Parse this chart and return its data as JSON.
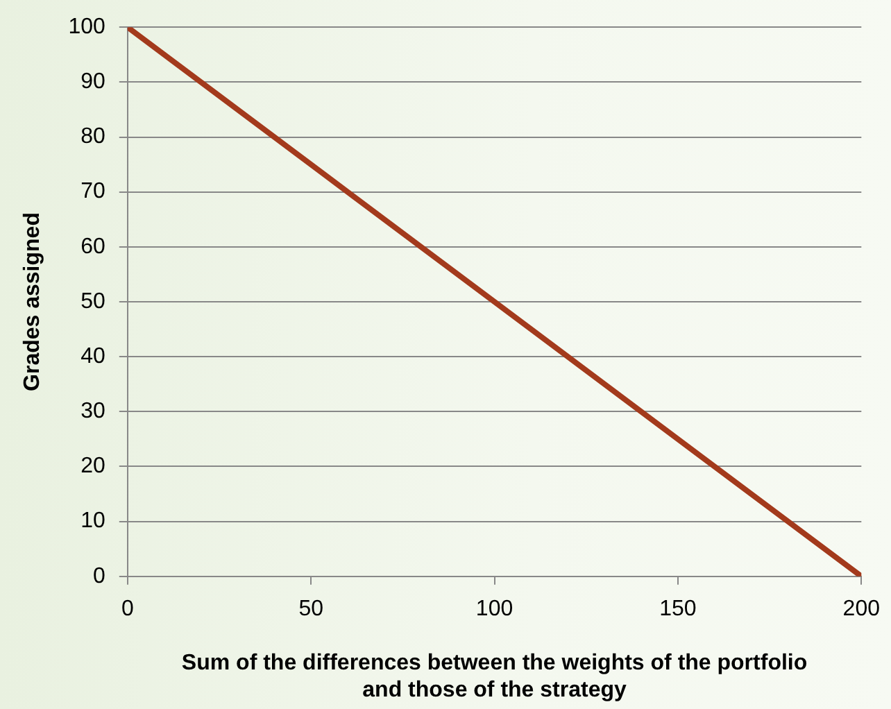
{
  "chart_data": {
    "type": "line",
    "xlabel": "Sum of the differences between the weights of the portfolio\nand those of the strategy",
    "ylabel": "Grades assigned",
    "x": [
      0,
      200
    ],
    "series": [
      {
        "color": "#a33a1c",
        "values": [
          100,
          0
        ]
      }
    ],
    "xlim": [
      0,
      200
    ],
    "xticks": [
      0,
      50,
      100,
      150,
      200
    ],
    "ylim": [
      0,
      100
    ],
    "yticks": [
      0,
      10,
      20,
      30,
      40,
      50,
      60,
      70,
      80,
      90,
      100
    ],
    "grid": "y",
    "legend": false,
    "marker": "none",
    "line_style": "solid"
  }
}
